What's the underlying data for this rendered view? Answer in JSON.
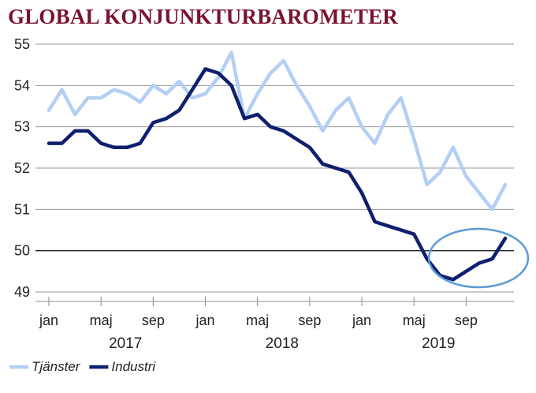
{
  "colors": {
    "title": "#7a1330",
    "grid": "#9a9a9a",
    "baseline": "#222222",
    "axis": "#8a8a8a",
    "tjanster": "#b4cff4",
    "industri": "#0f1f6e",
    "highlight_ellipse": "#5b9bd5"
  },
  "chart_data": {
    "type": "line",
    "title": "GLOBAL KONJUNKTURBAROMETER",
    "ylim": [
      49,
      55
    ],
    "yticks": [
      49,
      50,
      51,
      52,
      53,
      54,
      55
    ],
    "grid": true,
    "reference_line": 50,
    "x": [
      "2017-01",
      "2017-02",
      "2017-03",
      "2017-04",
      "2017-05",
      "2017-06",
      "2017-07",
      "2017-08",
      "2017-09",
      "2017-10",
      "2017-11",
      "2017-12",
      "2018-01",
      "2018-02",
      "2018-03",
      "2018-04",
      "2018-05",
      "2018-06",
      "2018-07",
      "2018-08",
      "2018-09",
      "2018-10",
      "2018-11",
      "2018-12",
      "2019-01",
      "2019-02",
      "2019-03",
      "2019-04",
      "2019-05",
      "2019-06",
      "2019-07",
      "2019-08",
      "2019-09",
      "2019-10",
      "2019-11",
      "2019-12"
    ],
    "month_ticks": [
      {
        "x": "2017-01",
        "label": "jan"
      },
      {
        "x": "2017-05",
        "label": "maj"
      },
      {
        "x": "2017-09",
        "label": "sep"
      },
      {
        "x": "2018-01",
        "label": "jan"
      },
      {
        "x": "2018-05",
        "label": "maj"
      },
      {
        "x": "2018-09",
        "label": "sep"
      },
      {
        "x": "2019-01",
        "label": "jan"
      },
      {
        "x": "2019-05",
        "label": "maj"
      },
      {
        "x": "2019-09",
        "label": "sep"
      }
    ],
    "year_labels": [
      {
        "x": "2017-07",
        "label": "2017"
      },
      {
        "x": "2018-07",
        "label": "2018"
      },
      {
        "x": "2019-07",
        "label": "2019"
      }
    ],
    "series": [
      {
        "name": "Tjänster",
        "values": [
          53.4,
          53.9,
          53.3,
          53.7,
          53.7,
          53.9,
          53.8,
          53.6,
          54.0,
          53.8,
          54.1,
          53.7,
          53.8,
          54.2,
          54.8,
          53.2,
          53.8,
          54.3,
          54.6,
          54.0,
          53.5,
          52.9,
          53.4,
          53.7,
          53.0,
          52.6,
          53.3,
          53.7,
          52.7,
          51.6,
          51.9,
          52.5,
          51.8,
          51.4,
          51.0,
          51.6
        ]
      },
      {
        "name": "Industri",
        "values": [
          52.6,
          52.6,
          52.9,
          52.9,
          52.6,
          52.5,
          52.5,
          52.6,
          53.1,
          53.2,
          53.4,
          53.9,
          54.4,
          54.3,
          54.0,
          53.2,
          53.3,
          53.0,
          52.9,
          52.7,
          52.5,
          52.1,
          52.0,
          51.9,
          51.4,
          50.7,
          50.6,
          50.5,
          50.4,
          49.8,
          49.4,
          49.3,
          49.5,
          49.7,
          49.8,
          50.3
        ]
      }
    ],
    "annotation": {
      "type": "ellipse",
      "around": "2019-07 to 2019-12"
    },
    "legend": "bottom-left"
  }
}
